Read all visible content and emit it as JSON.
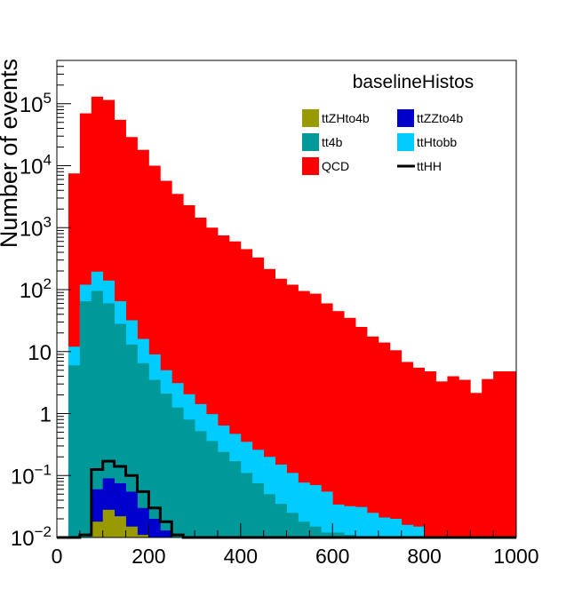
{
  "chart_data": {
    "type": "bar",
    "stacked": true,
    "log_y": true,
    "title": "baselineHistos",
    "xlabel": "",
    "ylabel": "Number of events",
    "xlim": [
      0,
      1000
    ],
    "ylim": [
      0.01,
      500000
    ],
    "x_ticks": [
      {
        "value": 0,
        "label": "0"
      },
      {
        "value": 200,
        "label": "200"
      },
      {
        "value": 400,
        "label": "400"
      },
      {
        "value": 600,
        "label": "600"
      },
      {
        "value": 800,
        "label": "800"
      },
      {
        "value": 1000,
        "label": "1000"
      }
    ],
    "y_ticks": [
      {
        "value": 0.01,
        "base": "10",
        "exp": "−2"
      },
      {
        "value": 0.1,
        "base": "10",
        "exp": "−1"
      },
      {
        "value": 1,
        "base": "1",
        "exp": ""
      },
      {
        "value": 10,
        "base": "10",
        "exp": ""
      },
      {
        "value": 100,
        "base": "10",
        "exp": "2"
      },
      {
        "value": 1000,
        "base": "10",
        "exp": "3"
      },
      {
        "value": 10000,
        "base": "10",
        "exp": "4"
      },
      {
        "value": 100000,
        "base": "10",
        "exp": "5"
      }
    ],
    "bin_edges": [
      0,
      25,
      50,
      75,
      100,
      125,
      150,
      175,
      200,
      225,
      250,
      275,
      300,
      325,
      350,
      375,
      400,
      425,
      450,
      475,
      500,
      525,
      550,
      575,
      600,
      625,
      650,
      675,
      700,
      725,
      750,
      775,
      800,
      825,
      850,
      875,
      900,
      925,
      950,
      975,
      1000
    ],
    "stack_totals": [
      {
        "name": "ttZHto4b",
        "color": "#999900",
        "values": [
          0,
          0,
          0.01,
          0.018,
          0.028,
          0.022,
          0.015,
          0.011,
          0.01,
          0.01,
          0.01,
          0,
          0,
          0,
          0,
          0,
          0,
          0,
          0,
          0,
          0,
          0,
          0,
          0,
          0,
          0,
          0,
          0,
          0,
          0,
          0,
          0,
          0,
          0,
          0,
          0,
          0,
          0,
          0,
          0
        ]
      },
      {
        "name": "ttZZto4b",
        "color": "#0000cc",
        "values": [
          0,
          0,
          0.01,
          0.06,
          0.09,
          0.075,
          0.055,
          0.03,
          0.02,
          0.013,
          0.01,
          0,
          0,
          0,
          0,
          0,
          0,
          0,
          0,
          0,
          0,
          0,
          0,
          0,
          0,
          0,
          0,
          0,
          0,
          0,
          0,
          0,
          0,
          0,
          0,
          0,
          0,
          0,
          0,
          0
        ]
      },
      {
        "name": "tt4b",
        "color": "#009999",
        "values": [
          0,
          6,
          65,
          95,
          60,
          28,
          13,
          6.5,
          3.5,
          2.1,
          1.25,
          0.8,
          0.52,
          0.36,
          0.24,
          0.17,
          0.11,
          0.075,
          0.05,
          0.035,
          0.025,
          0.018,
          0.015,
          0.012,
          0.012,
          0.011,
          0.01,
          0.01,
          0.01,
          0.01,
          0.01,
          0.01,
          0,
          0,
          0,
          0,
          0,
          0,
          0,
          0
        ]
      },
      {
        "name": "ttHtobb",
        "color": "#00ccff",
        "values": [
          0,
          12,
          120,
          195,
          140,
          65,
          32,
          16,
          9,
          5,
          3.1,
          2.05,
          1.42,
          0.98,
          0.64,
          0.47,
          0.35,
          0.26,
          0.2,
          0.15,
          0.11,
          0.077,
          0.07,
          0.055,
          0.034,
          0.032,
          0.031,
          0.025,
          0.021,
          0.02,
          0.016,
          0.015,
          0.01,
          0.01,
          0.01,
          0.01,
          0,
          0,
          0,
          0
        ]
      },
      {
        "name": "QCD",
        "color": "#ff0000",
        "values": [
          0,
          7500,
          70000,
          130000,
          115000,
          55000,
          29000,
          18000,
          10000,
          5700,
          3500,
          2300,
          1450,
          1000,
          750,
          600,
          450,
          330,
          215,
          150,
          120,
          95,
          86,
          60,
          45,
          35,
          25,
          17.5,
          14,
          10.5,
          6.8,
          5.5,
          4.8,
          3.3,
          4,
          3.5,
          2.15,
          3.6,
          4.8,
          4.8
        ]
      }
    ],
    "overlay": {
      "name": "ttHH",
      "color": "#000000",
      "values": [
        0,
        0,
        0.011,
        0.125,
        0.17,
        0.14,
        0.1,
        0.055,
        0.03,
        0.018,
        0.011,
        0,
        0,
        0,
        0,
        0,
        0,
        0,
        0,
        0,
        0,
        0,
        0,
        0,
        0,
        0,
        0,
        0,
        0,
        0,
        0,
        0,
        0,
        0,
        0,
        0,
        0,
        0,
        0,
        0
      ]
    },
    "legend": [
      {
        "label": "ttZHto4b",
        "color": "#999900",
        "kind": "box"
      },
      {
        "label": "ttZZto4b",
        "color": "#0000cc",
        "kind": "box"
      },
      {
        "label": "tt4b",
        "color": "#009999",
        "kind": "box"
      },
      {
        "label": "ttHtobb",
        "color": "#00ccff",
        "kind": "box"
      },
      {
        "label": "QCD",
        "color": "#ff0000",
        "kind": "box"
      },
      {
        "label": "ttHH",
        "color": "#000000",
        "kind": "line"
      }
    ],
    "legend_placement": "top-right",
    "grid": false
  }
}
